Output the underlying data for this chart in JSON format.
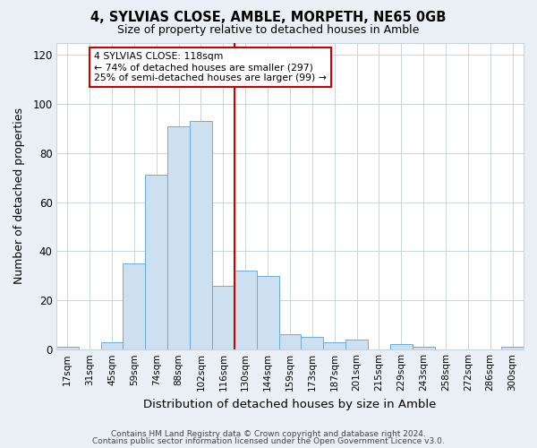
{
  "title": "4, SYLVIAS CLOSE, AMBLE, MORPETH, NE65 0GB",
  "subtitle": "Size of property relative to detached houses in Amble",
  "xlabel": "Distribution of detached houses by size in Amble",
  "ylabel": "Number of detached properties",
  "bin_labels": [
    "17sqm",
    "31sqm",
    "45sqm",
    "59sqm",
    "74sqm",
    "88sqm",
    "102sqm",
    "116sqm",
    "130sqm",
    "144sqm",
    "159sqm",
    "173sqm",
    "187sqm",
    "201sqm",
    "215sqm",
    "229sqm",
    "243sqm",
    "258sqm",
    "272sqm",
    "286sqm",
    "300sqm"
  ],
  "bar_heights": [
    1,
    0,
    3,
    35,
    71,
    91,
    93,
    26,
    32,
    30,
    6,
    5,
    3,
    4,
    0,
    2,
    1,
    0,
    0,
    0,
    1
  ],
  "bar_color": "#cce0f0",
  "bar_edge_color": "#6aabe0",
  "vline_x": 7.5,
  "vline_color": "#cc0000",
  "annotation_title": "4 SYLVIAS CLOSE: 118sqm",
  "annotation_line1": "← 74% of detached houses are smaller (297)",
  "annotation_line2": "25% of semi-detached houses are larger (99) →",
  "annotation_box_color": "#cc0000",
  "ylim": [
    0,
    125
  ],
  "yticks": [
    0,
    20,
    40,
    60,
    80,
    100,
    120
  ],
  "footer1": "Contains HM Land Registry data © Crown copyright and database right 2024.",
  "footer2": "Contains public sector information licensed under the Open Government Licence v3.0.",
  "background_color": "#eaeff5",
  "plot_background": "#ffffff",
  "grid_color": "#c8d4e0"
}
